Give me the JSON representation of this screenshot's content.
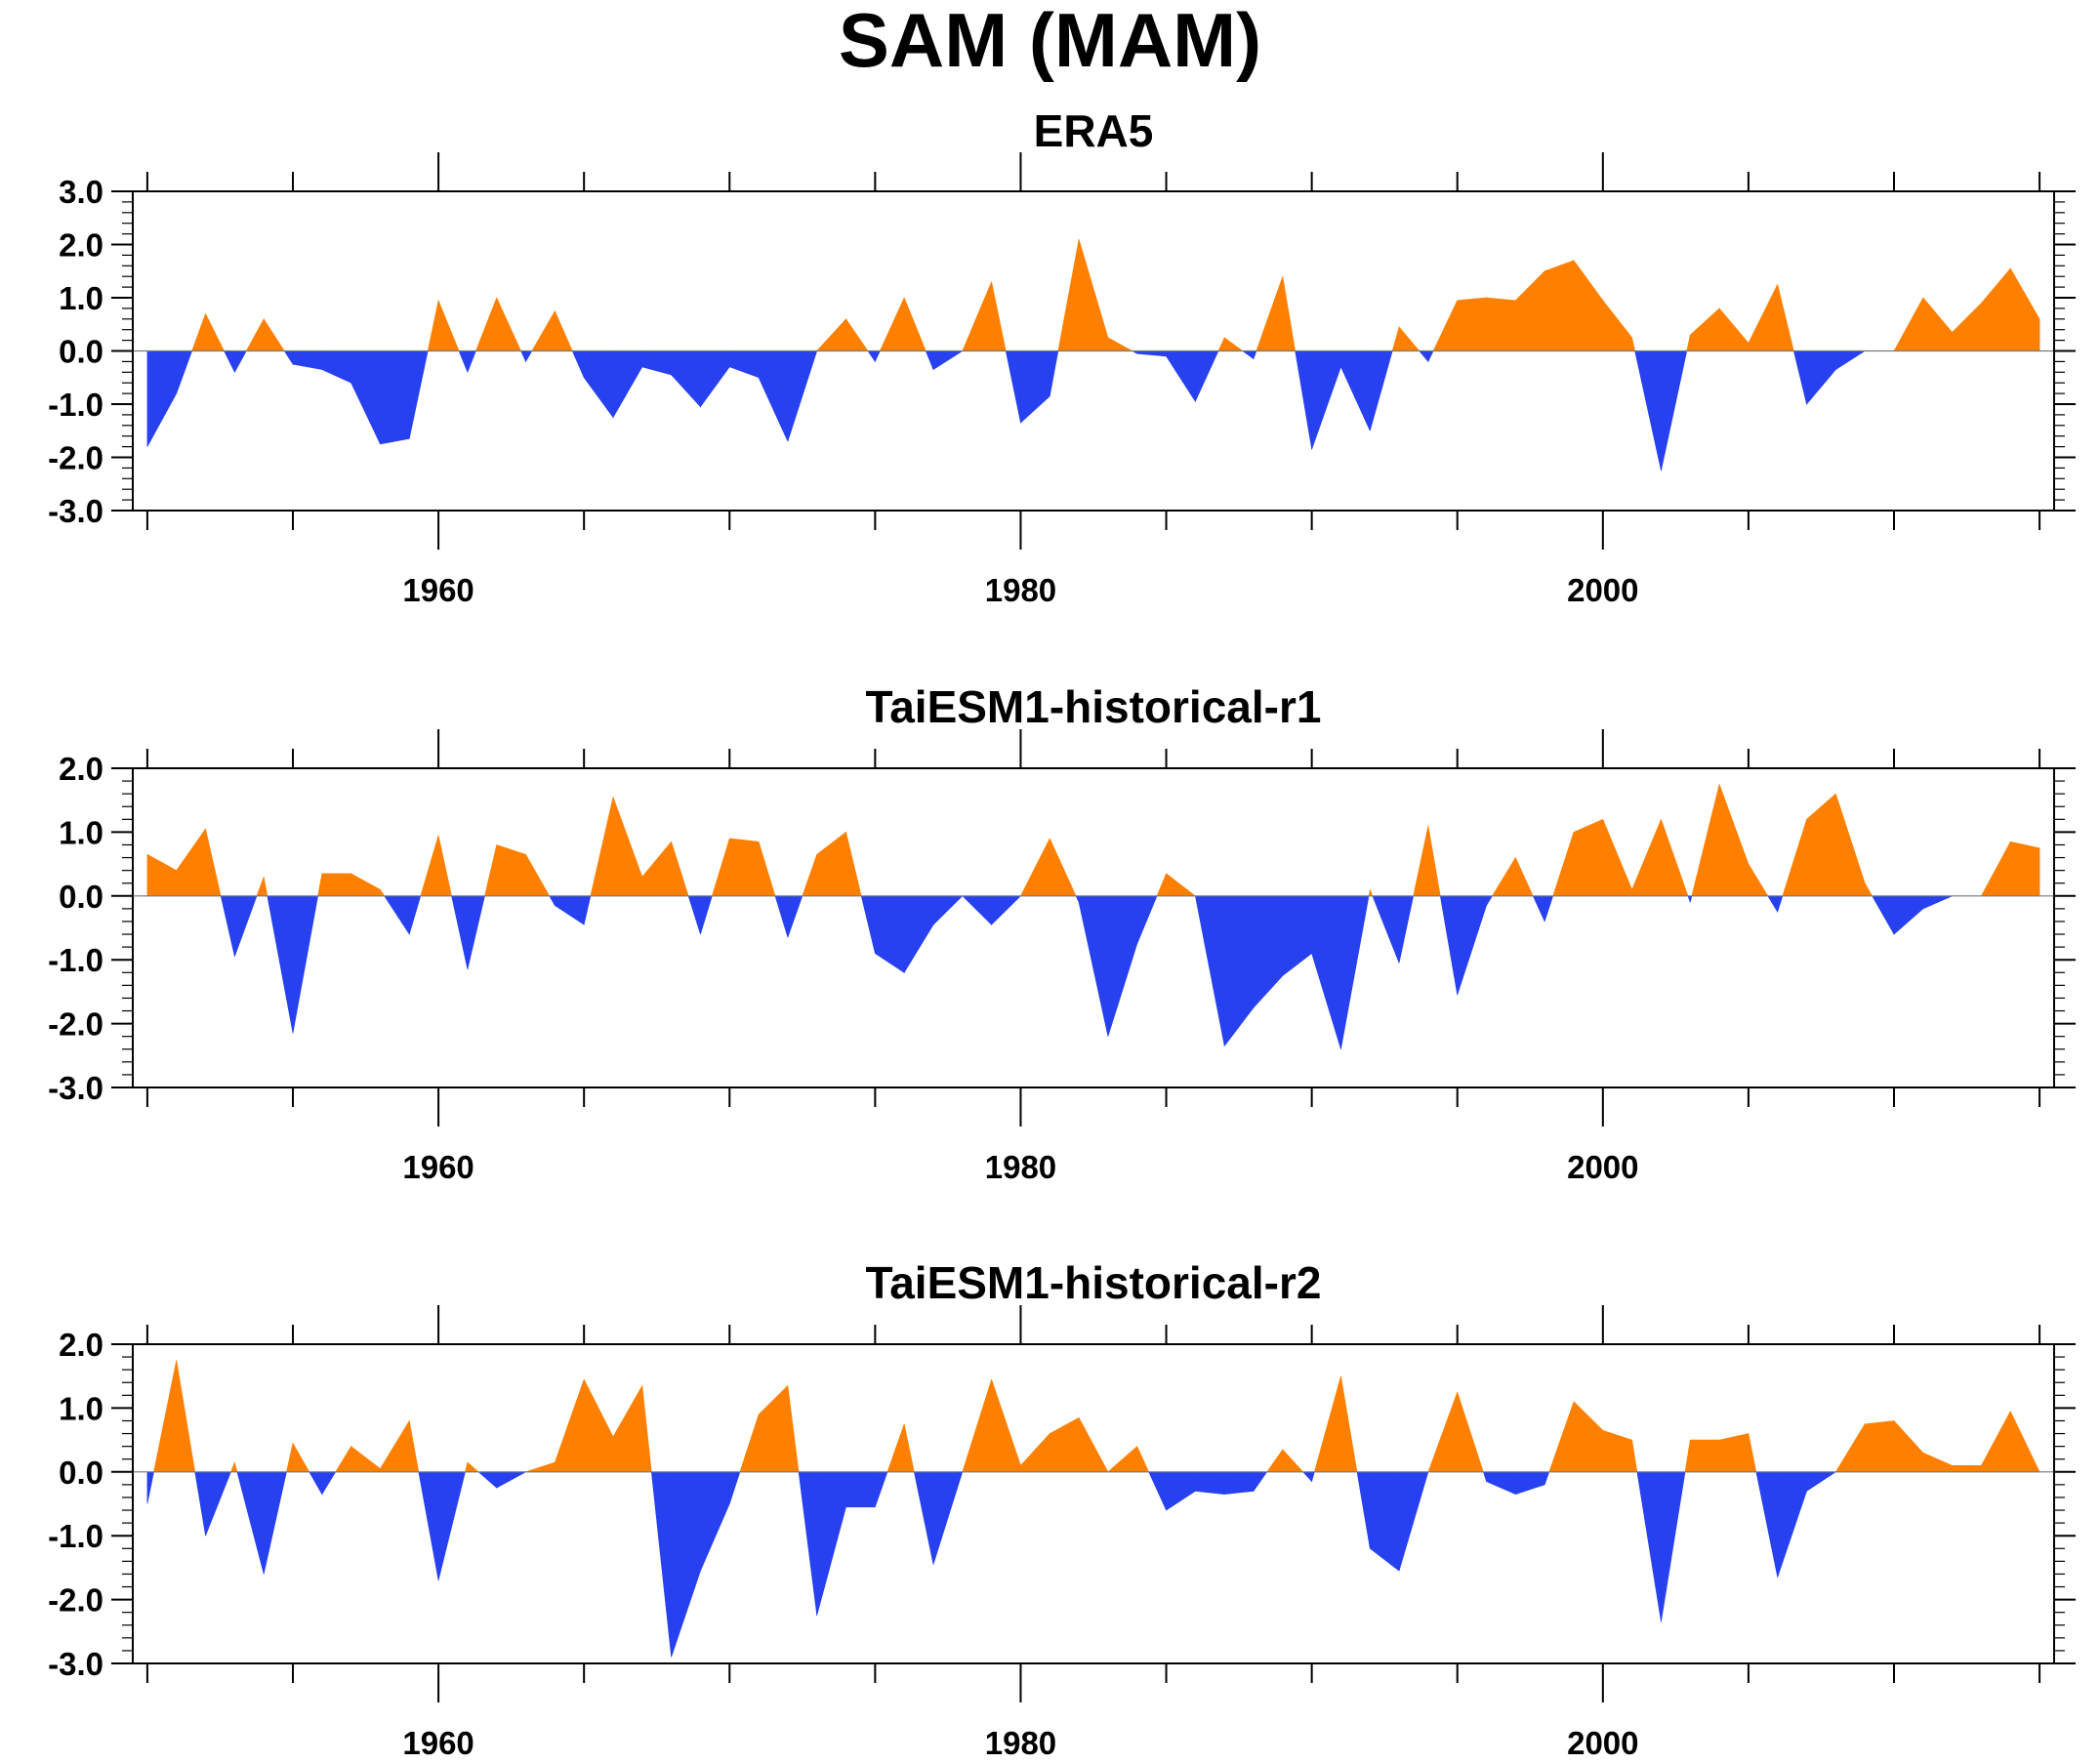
{
  "title": "SAM (MAM)",
  "colors": {
    "positive": "#ff8000",
    "negative": "#2740f0",
    "axis": "#000000"
  },
  "chart_data": [
    {
      "type": "area",
      "title": "ERA5",
      "x_ticks": [
        "1960",
        "1980",
        "2000"
      ],
      "y_ticks": [
        "3.0",
        "2.0",
        "1.0",
        "0.0",
        "-1.0",
        "-2.0",
        "-3.0"
      ],
      "ylim": [
        -3,
        3
      ],
      "xlim": [
        1949.5,
        2015.5
      ],
      "x_start": 1950,
      "values": [
        -1.8,
        -0.8,
        0.7,
        -0.4,
        0.6,
        -0.25,
        -0.35,
        -0.6,
        -1.75,
        -1.65,
        0.95,
        -0.4,
        1.0,
        -0.2,
        0.75,
        -0.5,
        -1.25,
        -0.3,
        -0.45,
        -1.05,
        -0.3,
        -0.5,
        -1.7,
        0.0,
        0.6,
        -0.2,
        1.0,
        -0.35,
        0.0,
        1.3,
        -1.35,
        -0.85,
        2.1,
        0.25,
        -0.05,
        -0.1,
        -0.95,
        0.25,
        -0.15,
        1.4,
        -1.85,
        -0.3,
        -1.5,
        0.45,
        -0.2,
        0.95,
        1.0,
        0.95,
        1.5,
        1.7,
        0.95,
        0.25,
        -2.25,
        0.3,
        0.8,
        0.15,
        1.25,
        -1.0,
        -0.35,
        0.0,
        0.0,
        1.0,
        0.35,
        0.9,
        1.55,
        0.6
      ]
    },
    {
      "type": "area",
      "title": "TaiESM1-historical-r1",
      "x_ticks": [
        "1960",
        "1980",
        "2000"
      ],
      "y_ticks": [
        "2.0",
        "1.0",
        "0.0",
        "-1.0",
        "-2.0",
        "-3.0"
      ],
      "ylim": [
        -3,
        2
      ],
      "xlim": [
        1949.5,
        2015.5
      ],
      "x_start": 1950,
      "values": [
        0.65,
        0.4,
        1.05,
        -0.95,
        0.3,
        -2.15,
        0.35,
        0.35,
        0.1,
        -0.6,
        0.95,
        -1.15,
        0.8,
        0.65,
        -0.15,
        -0.45,
        1.55,
        0.3,
        0.85,
        -0.6,
        0.9,
        0.85,
        -0.65,
        0.65,
        1.0,
        -0.9,
        -1.2,
        -0.45,
        0.0,
        -0.45,
        0.0,
        0.9,
        -0.1,
        -2.2,
        -0.75,
        0.35,
        0.0,
        -2.35,
        -1.75,
        -1.25,
        -0.9,
        -2.4,
        0.1,
        -1.05,
        1.1,
        -1.55,
        -0.15,
        0.6,
        -0.4,
        1.0,
        1.2,
        0.1,
        1.2,
        -0.1,
        1.75,
        0.5,
        -0.25,
        1.2,
        1.6,
        0.2,
        -0.6,
        -0.2,
        0.0,
        0.0,
        0.85,
        0.75
      ]
    },
    {
      "type": "area",
      "title": "TaiESM1-historical-r2",
      "x_ticks": [
        "1960",
        "1980",
        "2000"
      ],
      "y_ticks": [
        "2.0",
        "1.0",
        "0.0",
        "-1.0",
        "-2.0",
        "-3.0"
      ],
      "ylim": [
        -3,
        2
      ],
      "xlim": [
        1949.5,
        2015.5
      ],
      "x_start": 1950,
      "values": [
        -0.5,
        1.75,
        -1.0,
        0.15,
        -1.6,
        0.45,
        -0.35,
        0.4,
        0.05,
        0.8,
        -1.7,
        0.15,
        -0.25,
        0.0,
        0.15,
        1.45,
        0.55,
        1.35,
        -2.9,
        -1.55,
        -0.5,
        0.9,
        1.35,
        -2.25,
        -0.55,
        -0.55,
        0.75,
        -1.45,
        0.0,
        1.45,
        0.1,
        0.6,
        0.85,
        0.0,
        0.4,
        -0.6,
        -0.3,
        -0.35,
        -0.3,
        0.35,
        -0.15,
        1.5,
        -1.2,
        -1.55,
        0.0,
        1.25,
        -0.15,
        -0.35,
        -0.2,
        1.1,
        0.65,
        0.5,
        -2.35,
        0.5,
        0.5,
        0.6,
        -1.65,
        -0.3,
        0.0,
        0.75,
        0.8,
        0.3,
        0.1,
        0.1,
        0.95,
        0.0
      ]
    }
  ]
}
